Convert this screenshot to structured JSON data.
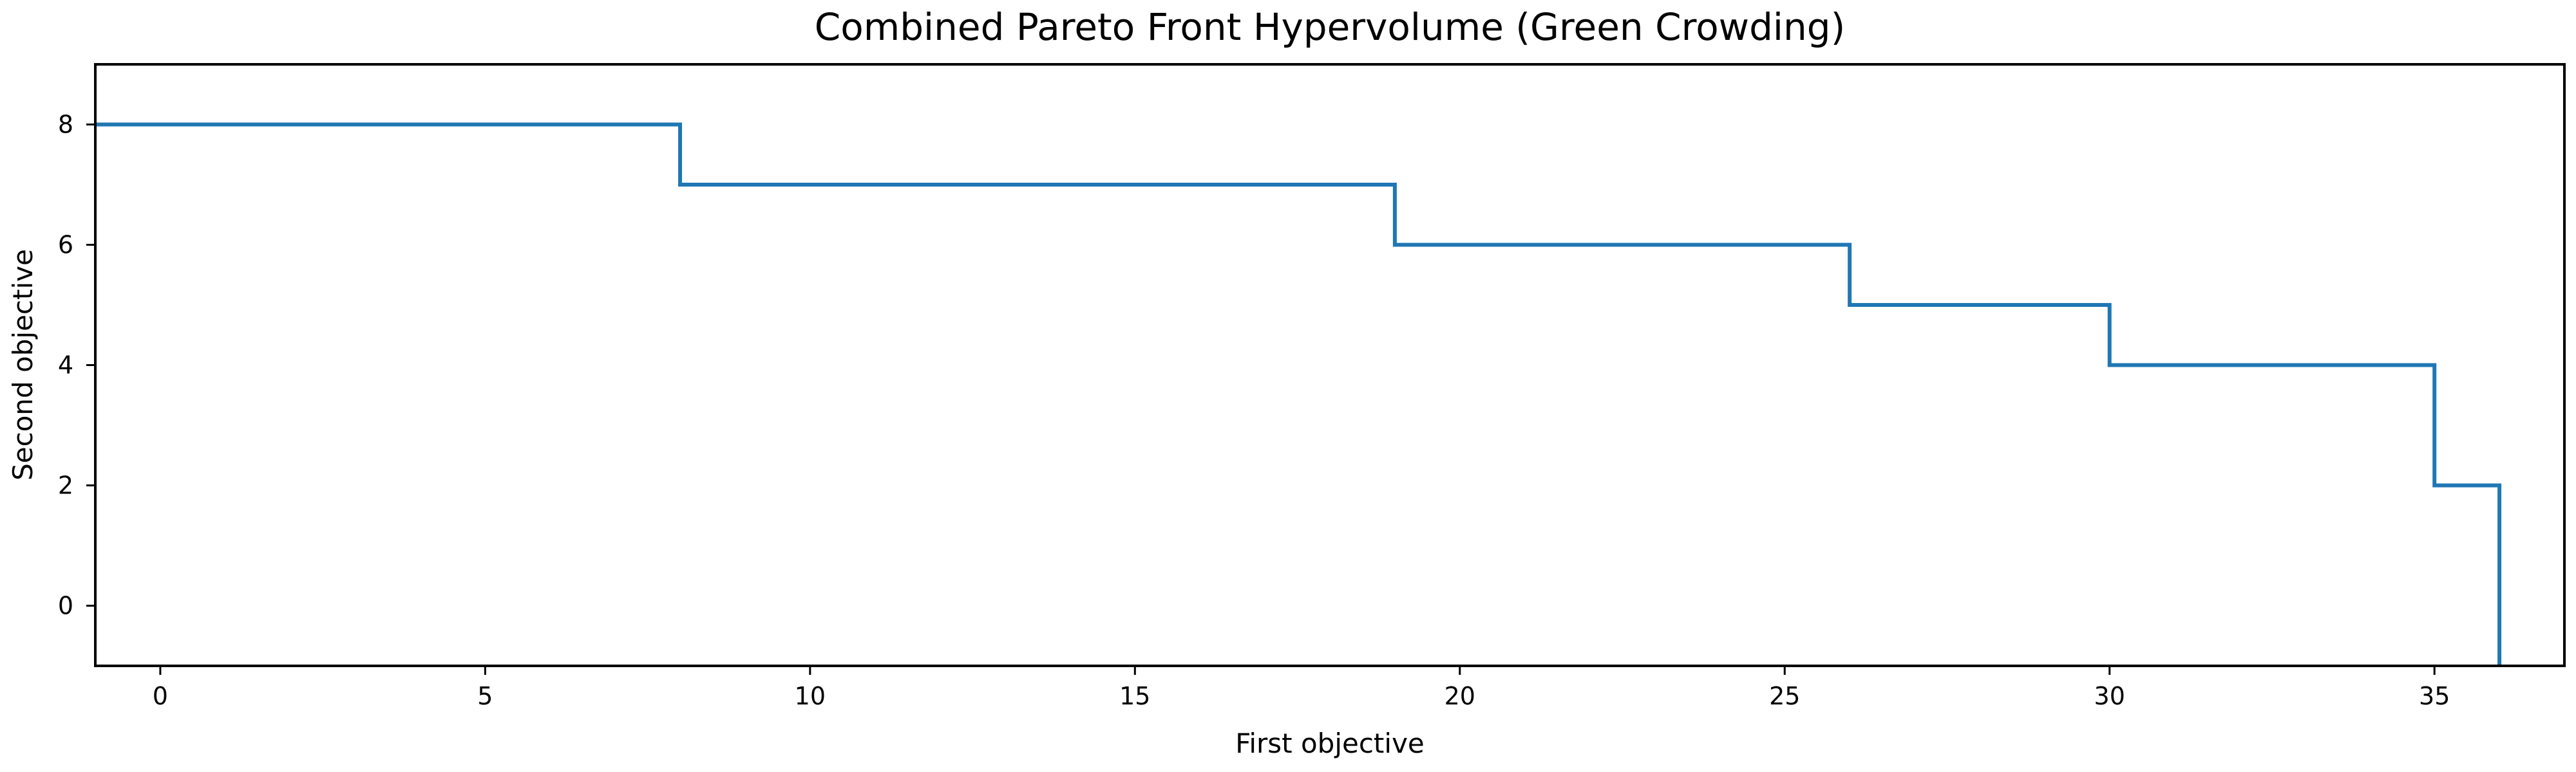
{
  "chart_data": {
    "type": "line",
    "title": "Combined Pareto Front Hypervolume (Green Crowding)",
    "xlabel": "First objective",
    "ylabel": "Second objective",
    "xlim": [
      -1,
      37
    ],
    "ylim": [
      -1,
      9
    ],
    "xticks": [
      0,
      5,
      10,
      15,
      20,
      25,
      30,
      35
    ],
    "yticks": [
      0,
      2,
      4,
      6,
      8
    ],
    "grid": false,
    "series": [
      {
        "step": "post",
        "color": "#1f77b4",
        "x": [
          -1,
          8,
          19,
          26,
          30,
          35,
          36,
          36
        ],
        "y": [
          8,
          7,
          6,
          5,
          4,
          2,
          2,
          -1
        ]
      }
    ]
  }
}
